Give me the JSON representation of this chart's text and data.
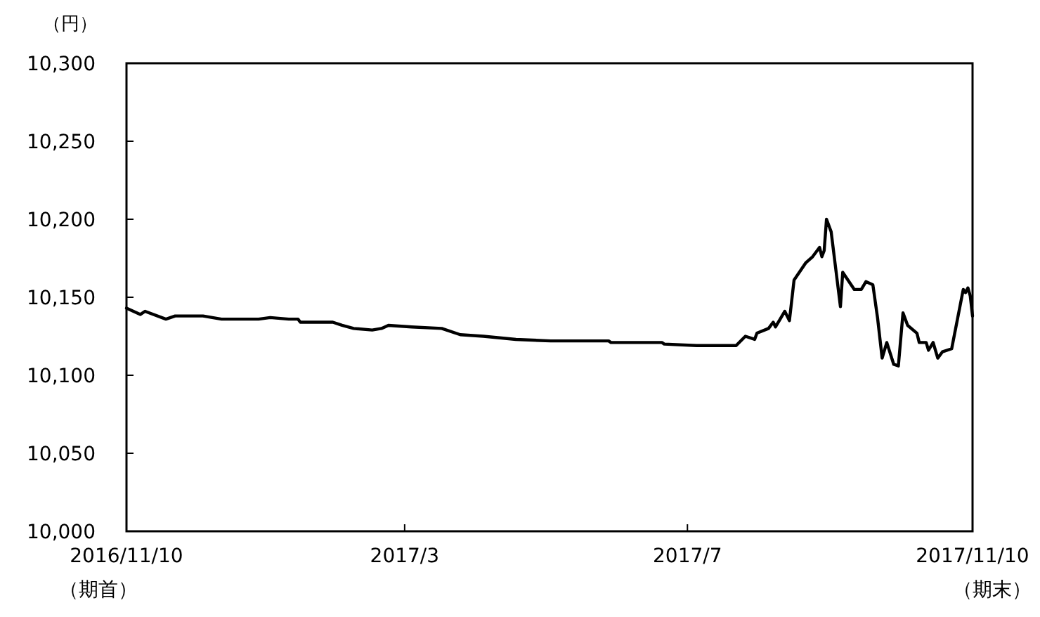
{
  "chart_data": {
    "type": "line",
    "ylabel": "（円）",
    "annotations": [
      "（期首）",
      "（期末）"
    ],
    "x": [
      "2016-11-10",
      "2016-11-16",
      "2016-11-18",
      "2016-11-27",
      "2016-12-01",
      "2016-12-13",
      "2016-12-21",
      "2017-01-06",
      "2017-01-11",
      "2017-01-19",
      "2017-01-23",
      "2017-01-24",
      "2017-02-07",
      "2017-02-11",
      "2017-02-16",
      "2017-02-24",
      "2017-02-28",
      "2017-03-03",
      "2017-03-13",
      "2017-03-26",
      "2017-04-03",
      "2017-04-13",
      "2017-04-27",
      "2017-05-12",
      "2017-06-06",
      "2017-06-07",
      "2017-06-29",
      "2017-06-30",
      "2017-07-14",
      "2017-07-31",
      "2017-08-04",
      "2017-08-08",
      "2017-08-09",
      "2017-08-14",
      "2017-08-16",
      "2017-08-17",
      "2017-08-19",
      "2017-08-21",
      "2017-08-23",
      "2017-08-25",
      "2017-08-30",
      "2017-09-02",
      "2017-09-05",
      "2017-09-06",
      "2017-09-07",
      "2017-09-08",
      "2017-09-10",
      "2017-09-12",
      "2017-09-14",
      "2017-09-15",
      "2017-09-20",
      "2017-09-23",
      "2017-09-25",
      "2017-09-28",
      "2017-09-30",
      "2017-10-02",
      "2017-10-04",
      "2017-10-07",
      "2017-10-09",
      "2017-10-11",
      "2017-10-13",
      "2017-10-17",
      "2017-10-18",
      "2017-10-21",
      "2017-10-22",
      "2017-10-24",
      "2017-10-26",
      "2017-10-28",
      "2017-11-01",
      "2017-11-06",
      "2017-11-07",
      "2017-11-08",
      "2017-11-09",
      "2017-11-10"
    ],
    "series": [
      {
        "color": "#000000",
        "values": [
          10143,
          10139,
          10141,
          10136,
          10138,
          10138,
          10136,
          10136,
          10137,
          10136,
          10136,
          10134,
          10134,
          10132,
          10130,
          10129,
          10130,
          10132,
          10131,
          10130,
          10126,
          10125,
          10123,
          10122,
          10122,
          10121,
          10121,
          10120,
          10119,
          10119,
          10125,
          10123,
          10127,
          10130,
          10134,
          10131,
          10136,
          10141,
          10135,
          10161,
          10172,
          10176,
          10182,
          10176,
          10180,
          10200,
          10192,
          10168,
          10144,
          10166,
          10155,
          10155,
          10160,
          10158,
          10137,
          10111,
          10121,
          10107,
          10106,
          10140,
          10132,
          10127,
          10121,
          10121,
          10116,
          10121,
          10111,
          10115,
          10117,
          10155,
          10153,
          10156,
          10151,
          10138
        ]
      }
    ],
    "xlim": [
      "2016-11-10",
      "2017-11-10"
    ],
    "xticks": [
      {
        "value": "2016-11-10",
        "label": "2016/11/10"
      },
      {
        "value": "2017-03-10",
        "label": "2017/3"
      },
      {
        "value": "2017-07-10",
        "label": "2017/7"
      },
      {
        "value": "2017-11-10",
        "label": "2017/11/10"
      }
    ],
    "ylim": [
      10000,
      10300
    ],
    "yticks": [
      {
        "value": 10000,
        "label": "10,000"
      },
      {
        "value": 10050,
        "label": "10,050"
      },
      {
        "value": 10100,
        "label": "10,100"
      },
      {
        "value": 10150,
        "label": "10,150"
      },
      {
        "value": 10200,
        "label": "10,200"
      },
      {
        "value": 10250,
        "label": "10,250"
      },
      {
        "value": 10300,
        "label": "10,300"
      }
    ],
    "grid": false,
    "marker": "none",
    "line_style": "solid"
  }
}
